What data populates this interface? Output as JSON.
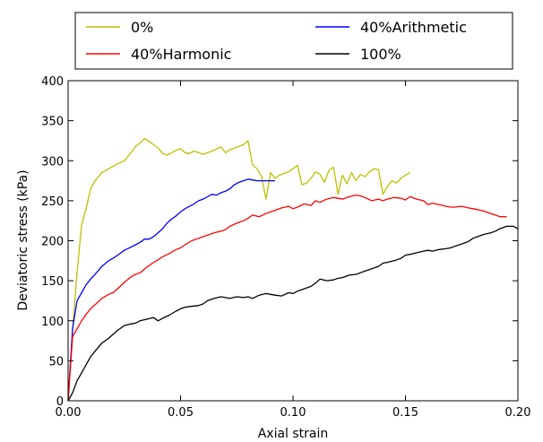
{
  "chart_data": {
    "type": "line",
    "xlabel": "Axial strain",
    "ylabel": "Deviatoric stress (kPa)",
    "xlim": [
      0,
      0.2
    ],
    "ylim": [
      0,
      400
    ],
    "x_ticks": [
      0,
      0.05,
      0.1,
      0.15,
      0.2
    ],
    "x_tick_labels": [
      "0.00",
      "0.05",
      "0.10",
      "0.15",
      "0.20"
    ],
    "y_ticks": [
      0,
      50,
      100,
      150,
      200,
      250,
      300,
      350,
      400
    ],
    "y_tick_labels": [
      "0",
      "50",
      "100",
      "150",
      "200",
      "250",
      "300",
      "350",
      "400"
    ],
    "grid": false,
    "legend_position": "top (outside plot, two columns)",
    "series": [
      {
        "name": "0%",
        "color": "#bfbf00",
        "x": [
          0,
          0.002,
          0.004,
          0.006,
          0.008,
          0.01,
          0.012,
          0.015,
          0.018,
          0.02,
          0.022,
          0.025,
          0.028,
          0.03,
          0.032,
          0.034,
          0.036,
          0.038,
          0.04,
          0.042,
          0.044,
          0.046,
          0.048,
          0.05,
          0.052,
          0.054,
          0.056,
          0.058,
          0.06,
          0.062,
          0.064,
          0.066,
          0.068,
          0.07,
          0.072,
          0.074,
          0.076,
          0.078,
          0.08,
          0.082,
          0.084,
          0.086,
          0.088,
          0.09,
          0.092,
          0.094,
          0.096,
          0.098,
          0.1,
          0.102,
          0.104,
          0.106,
          0.108,
          0.11,
          0.112,
          0.114,
          0.116,
          0.118,
          0.12,
          0.122,
          0.124,
          0.126,
          0.128,
          0.13,
          0.132,
          0.134,
          0.136,
          0.138,
          0.14,
          0.142,
          0.144,
          0.146,
          0.148,
          0.15,
          0.152
        ],
        "y": [
          0,
          90,
          160,
          220,
          240,
          265,
          275,
          285,
          290,
          293,
          296,
          300,
          310,
          318,
          322,
          328,
          324,
          320,
          316,
          309,
          307,
          310,
          313,
          315,
          310,
          309,
          312,
          310,
          308,
          310,
          312,
          315,
          317,
          310,
          314,
          316,
          318,
          320,
          325,
          295,
          290,
          280,
          252,
          285,
          278,
          282,
          284,
          286,
          290,
          294,
          270,
          272,
          278,
          286,
          283,
          273,
          288,
          292,
          258,
          282,
          271,
          285,
          275,
          283,
          280,
          286,
          290,
          289,
          258,
          268,
          275,
          272,
          278,
          282,
          285
        ]
      },
      {
        "name": "40%Arithmetic",
        "color": "#0000ff",
        "x": [
          0,
          0.002,
          0.004,
          0.006,
          0.008,
          0.01,
          0.012,
          0.015,
          0.018,
          0.02,
          0.022,
          0.025,
          0.028,
          0.03,
          0.032,
          0.034,
          0.036,
          0.038,
          0.04,
          0.042,
          0.044,
          0.046,
          0.048,
          0.05,
          0.052,
          0.054,
          0.056,
          0.058,
          0.06,
          0.062,
          0.064,
          0.066,
          0.068,
          0.07,
          0.072,
          0.074,
          0.076,
          0.078,
          0.08,
          0.082,
          0.084,
          0.086,
          0.088,
          0.09,
          0.092
        ],
        "y": [
          0,
          90,
          125,
          135,
          145,
          152,
          158,
          168,
          175,
          178,
          182,
          188,
          192,
          195,
          198,
          202,
          202,
          205,
          210,
          215,
          222,
          227,
          231,
          236,
          240,
          243,
          246,
          250,
          252,
          255,
          258,
          257,
          260,
          262,
          265,
          270,
          273,
          275,
          277,
          276,
          275,
          275,
          275,
          275,
          275
        ]
      },
      {
        "name": "40%Harmonic",
        "color": "#ff0000",
        "x": [
          0,
          0.002,
          0.004,
          0.006,
          0.008,
          0.01,
          0.012,
          0.015,
          0.018,
          0.02,
          0.022,
          0.025,
          0.028,
          0.03,
          0.032,
          0.035,
          0.038,
          0.04,
          0.042,
          0.045,
          0.048,
          0.05,
          0.052,
          0.055,
          0.058,
          0.06,
          0.062,
          0.065,
          0.068,
          0.07,
          0.072,
          0.075,
          0.078,
          0.08,
          0.082,
          0.085,
          0.088,
          0.09,
          0.092,
          0.095,
          0.098,
          0.1,
          0.102,
          0.105,
          0.108,
          0.11,
          0.112,
          0.115,
          0.118,
          0.12,
          0.122,
          0.125,
          0.128,
          0.13,
          0.132,
          0.135,
          0.138,
          0.14,
          0.142,
          0.145,
          0.148,
          0.15,
          0.152,
          0.155,
          0.158,
          0.16,
          0.162,
          0.165,
          0.168,
          0.17,
          0.172,
          0.175,
          0.178,
          0.18,
          0.182,
          0.185,
          0.188,
          0.19,
          0.192,
          0.195
        ],
        "y": [
          0,
          80,
          90,
          100,
          108,
          115,
          120,
          128,
          133,
          135,
          140,
          148,
          155,
          158,
          160,
          167,
          173,
          176,
          180,
          184,
          189,
          191,
          195,
          200,
          203,
          205,
          207,
          210,
          212,
          214,
          218,
          222,
          225,
          228,
          232,
          230,
          234,
          236,
          238,
          241,
          243,
          240,
          242,
          246,
          244,
          250,
          248,
          252,
          254,
          253,
          252,
          255,
          257,
          256,
          254,
          250,
          252,
          250,
          252,
          254,
          253,
          251,
          255,
          252,
          250,
          245,
          247,
          245,
          243,
          242,
          242,
          243,
          241,
          240,
          239,
          237,
          234,
          232,
          230,
          230
        ]
      },
      {
        "name": "100%",
        "color": "#000000",
        "x": [
          0,
          0.002,
          0.004,
          0.006,
          0.008,
          0.01,
          0.012,
          0.015,
          0.018,
          0.02,
          0.022,
          0.025,
          0.028,
          0.03,
          0.032,
          0.035,
          0.038,
          0.04,
          0.042,
          0.045,
          0.048,
          0.05,
          0.052,
          0.055,
          0.058,
          0.06,
          0.062,
          0.065,
          0.068,
          0.07,
          0.072,
          0.075,
          0.078,
          0.08,
          0.082,
          0.085,
          0.088,
          0.09,
          0.092,
          0.095,
          0.098,
          0.1,
          0.102,
          0.105,
          0.108,
          0.11,
          0.112,
          0.115,
          0.118,
          0.12,
          0.122,
          0.125,
          0.128,
          0.13,
          0.132,
          0.135,
          0.138,
          0.14,
          0.142,
          0.145,
          0.148,
          0.15,
          0.152,
          0.155,
          0.158,
          0.16,
          0.162,
          0.165,
          0.168,
          0.17,
          0.172,
          0.175,
          0.178,
          0.18,
          0.182,
          0.185,
          0.188,
          0.19,
          0.192,
          0.195,
          0.198,
          0.2
        ],
        "y": [
          0,
          10,
          25,
          35,
          45,
          55,
          62,
          72,
          78,
          83,
          88,
          94,
          96,
          97,
          100,
          102,
          104,
          100,
          103,
          107,
          112,
          115,
          117,
          118,
          119,
          121,
          125,
          128,
          130,
          129,
          128,
          130,
          129,
          130,
          128,
          132,
          134,
          133,
          132,
          131,
          135,
          134,
          137,
          140,
          143,
          147,
          152,
          150,
          151,
          153,
          154,
          157,
          158,
          160,
          162,
          165,
          168,
          172,
          173,
          175,
          178,
          182,
          183,
          185,
          187,
          188,
          187,
          189,
          190,
          191,
          193,
          196,
          199,
          203,
          205,
          208,
          210,
          212,
          215,
          218,
          218,
          215
        ]
      }
    ]
  }
}
